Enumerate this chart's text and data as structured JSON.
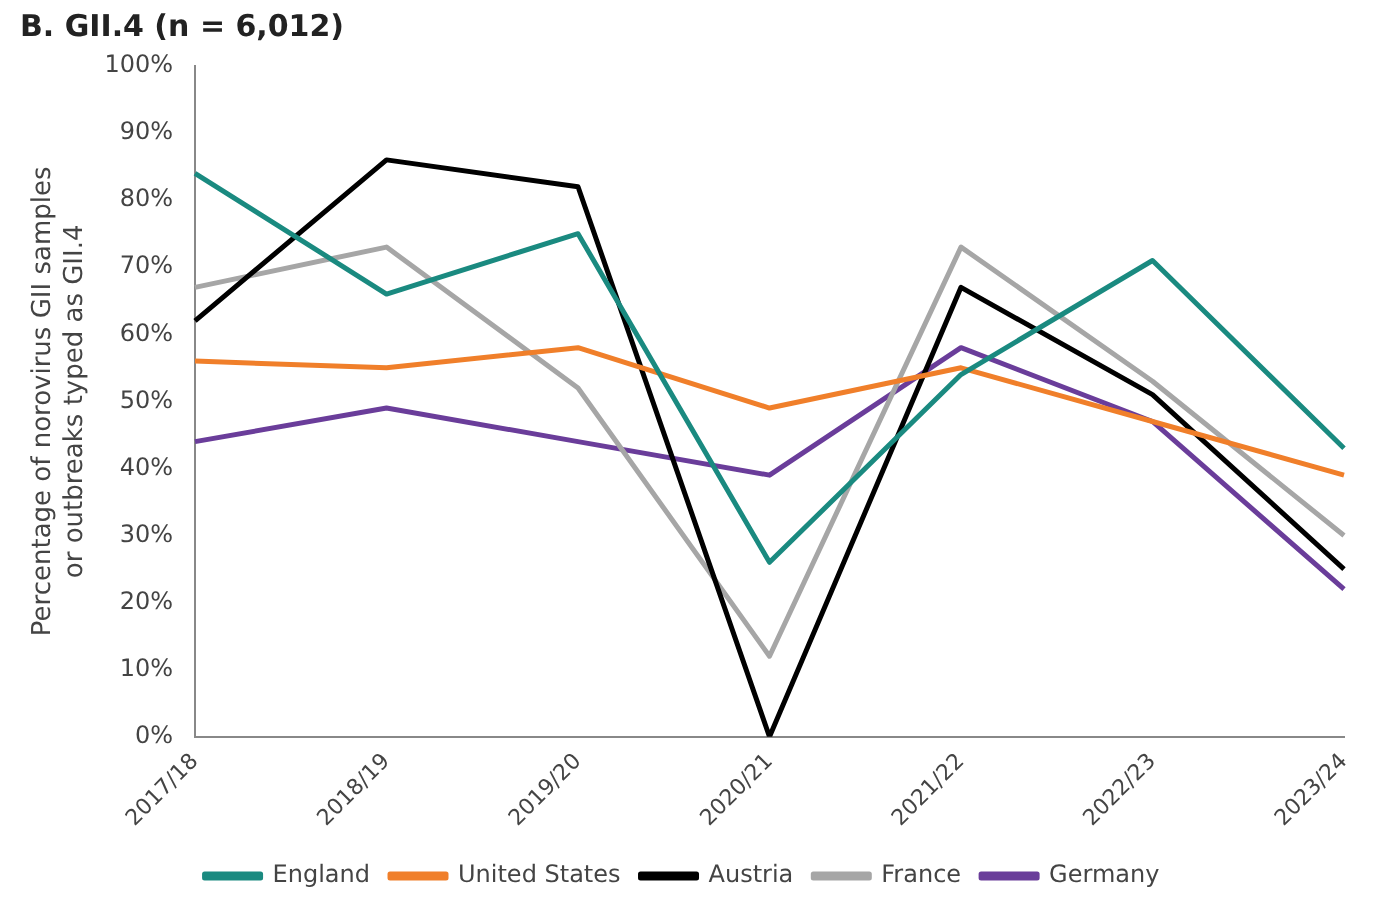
{
  "chart_data": {
    "type": "line",
    "title": "B. GII.4 (n = 6,012)",
    "ylabel": "Percentage of norovirus GII samples\nor outbreaks typed as GII.4",
    "categories": [
      "2017/18",
      "2018/19",
      "2019/20",
      "2020/21",
      "2021/22",
      "2022/23",
      "2023/24"
    ],
    "series": [
      {
        "name": "England",
        "color": "#1a8a80",
        "values": [
          84,
          66,
          75,
          26,
          54,
          71,
          43
        ]
      },
      {
        "name": "United States",
        "color": "#f07f2a",
        "values": [
          56,
          55,
          58,
          49,
          55,
          47,
          39
        ]
      },
      {
        "name": "Austria",
        "color": "#000000",
        "values": [
          62,
          86,
          82,
          0,
          67,
          51,
          25
        ]
      },
      {
        "name": "France",
        "color": "#a6a6a6",
        "values": [
          67,
          73,
          52,
          12,
          73,
          53,
          30
        ]
      },
      {
        "name": "Germany",
        "color": "#6a3d9a",
        "values": [
          44,
          49,
          44,
          39,
          58,
          47,
          22
        ]
      }
    ],
    "ylim": [
      0,
      100
    ],
    "yticks": [
      {
        "value": 0,
        "label": "0%"
      },
      {
        "value": 10,
        "label": "10%"
      },
      {
        "value": 20,
        "label": "20%"
      },
      {
        "value": 30,
        "label": "30%"
      },
      {
        "value": 40,
        "label": "40%"
      },
      {
        "value": 50,
        "label": "50%"
      },
      {
        "value": 60,
        "label": "60%"
      },
      {
        "value": 70,
        "label": "70%"
      },
      {
        "value": 80,
        "label": "80%"
      },
      {
        "value": 90,
        "label": "90%"
      },
      {
        "value": 100,
        "label": "100%"
      }
    ],
    "grid": false,
    "legend": "bottom",
    "marker": "none",
    "line_style": "solid"
  }
}
